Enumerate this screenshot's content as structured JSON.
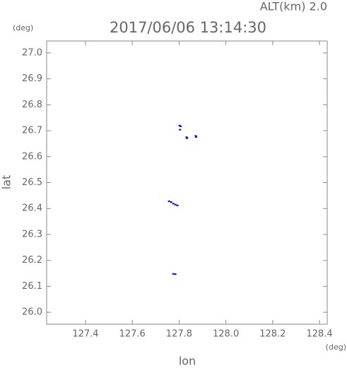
{
  "chart_data": {
    "type": "scatter",
    "title": "2017/06/06 13:14:30",
    "subtitle": "ALT(km) 2.0",
    "x_label": "lon",
    "y_label": "lat",
    "x_unit": "(deg)",
    "y_unit": "(deg)",
    "color": "#0000cc",
    "xlim": [
      127.234,
      128.433
    ],
    "ylim": [
      25.954,
      27.046
    ],
    "xticks": [
      127.4,
      127.6,
      127.8,
      {
        "value": 128,
        "label": "128.0"
      },
      128.2,
      128.4
    ],
    "yticks": [
      {
        "value": 26,
        "label": "26.0"
      },
      26.1,
      26.2,
      26.3,
      26.4,
      26.5,
      26.6,
      26.7,
      26.8,
      26.9,
      {
        "value": 27,
        "label": "27.0"
      }
    ],
    "x": [
      127.802,
      127.807,
      127.804,
      127.832,
      127.834,
      127.871,
      127.873,
      127.757,
      127.766,
      127.775,
      127.784,
      127.793,
      127.775,
      127.784
    ],
    "values": [
      26.72,
      26.717,
      26.704,
      26.675,
      26.671,
      26.68,
      26.676,
      26.428,
      26.425,
      26.419,
      26.415,
      26.412,
      26.148,
      26.147
    ]
  }
}
